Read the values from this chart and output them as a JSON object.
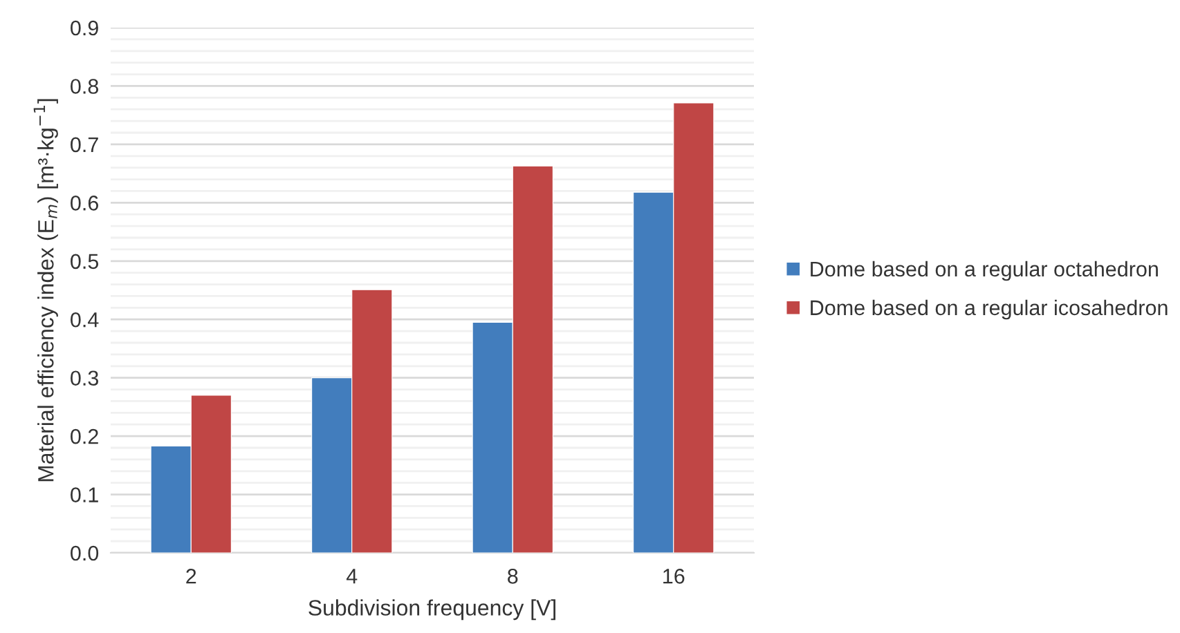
{
  "chart_data": {
    "type": "bar",
    "xlabel": "Subdivision frequency [V]",
    "ylabel": "Material efficiency index (E$_{m}$) [m³·kg$^{−1}$]",
    "categories": [
      "2",
      "4",
      "8",
      "16"
    ],
    "series": [
      {
        "name": "Dome based on a regular octahedron",
        "color": "#427dbd",
        "values": [
          0.183,
          0.3,
          0.395,
          0.618
        ]
      },
      {
        "name": "Dome based on a regular icosahedron",
        "color": "#c04645",
        "values": [
          0.27,
          0.451,
          0.663,
          0.771
        ]
      }
    ],
    "ylim": [
      0,
      0.9
    ],
    "yticks": [
      {
        "value": 0,
        "label": "0.0"
      },
      {
        "value": 0.02,
        "label": null
      },
      {
        "value": 0.04,
        "label": null
      },
      {
        "value": 0.06,
        "label": null
      },
      {
        "value": 0.08,
        "label": null
      },
      0.1,
      {
        "value": 0.12,
        "label": null
      },
      {
        "value": 0.14,
        "label": null
      },
      {
        "value": 0.16,
        "label": null
      },
      {
        "value": 0.18,
        "label": null
      },
      0.2,
      {
        "value": 0.22,
        "label": null
      },
      {
        "value": 0.24,
        "label": null
      },
      {
        "value": 0.26,
        "label": null
      },
      {
        "value": 0.28,
        "label": null
      },
      0.3,
      {
        "value": 0.32,
        "label": null
      },
      {
        "value": 0.34,
        "label": null
      },
      {
        "value": 0.36,
        "label": null
      },
      {
        "value": 0.38,
        "label": null
      },
      0.4,
      {
        "value": 0.42,
        "label": null
      },
      {
        "value": 0.44,
        "label": null
      },
      {
        "value": 0.46,
        "label": null
      },
      {
        "value": 0.48,
        "label": null
      },
      0.5,
      {
        "value": 0.52,
        "label": null
      },
      {
        "value": 0.54,
        "label": null
      },
      {
        "value": 0.56,
        "label": null
      },
      {
        "value": 0.58,
        "label": null
      },
      0.6,
      {
        "value": 0.62,
        "label": null
      },
      {
        "value": 0.64,
        "label": null
      },
      {
        "value": 0.66,
        "label": null
      },
      {
        "value": 0.68,
        "label": null
      },
      0.7,
      {
        "value": 0.72,
        "label": null
      },
      {
        "value": 0.74,
        "label": null
      },
      {
        "value": 0.76,
        "label": null
      },
      {
        "value": 0.78,
        "label": null
      },
      0.8,
      {
        "value": 0.82,
        "label": null
      },
      {
        "value": 0.84,
        "label": null
      },
      {
        "value": 0.86,
        "label": null
      },
      {
        "value": 0.88,
        "label": null
      },
      0.9
    ],
    "grid": "y",
    "legend": "right"
  }
}
